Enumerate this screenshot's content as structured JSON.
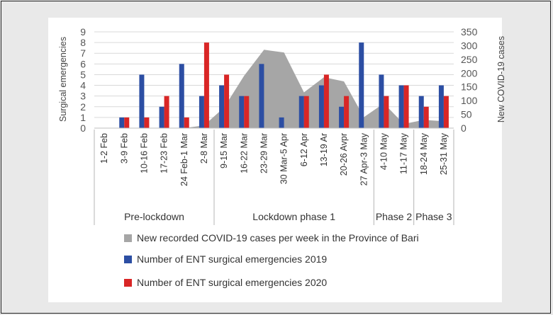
{
  "chart_data": {
    "type": "bar",
    "categories": [
      "1-2 Feb",
      "3-9 Feb",
      "10-16 Feb",
      "17-23 Feb",
      "24 Feb-1 Mar",
      "2-8 Mar",
      "9-15 Mar",
      "16-22 Mar",
      "23-29 Mar",
      "30 Mar-5 Apr",
      "6-12 Apr",
      "13-19 Ar",
      "20-26 Avpr",
      "27 Apr-3 May",
      "4-10 May",
      "11-17 May",
      "18-24 May",
      "25-31 May"
    ],
    "ylabel": "Surgical emergencies",
    "ylabel_right": "New COVID-19 cases",
    "ylim": [
      0,
      9
    ],
    "ylim_right": [
      0,
      350
    ],
    "yticks": [
      0,
      1,
      2,
      3,
      4,
      5,
      6,
      7,
      8,
      9
    ],
    "yticks_right": [
      0,
      50,
      100,
      150,
      200,
      250,
      300,
      350
    ],
    "groups": [
      {
        "label": "Pre-lockdown",
        "start": 0,
        "end": 5
      },
      {
        "label": "Lockdown phase 1",
        "start": 6,
        "end": 13
      },
      {
        "label": "Phase 2",
        "start": 14,
        "end": 15
      },
      {
        "label": "Phase 3",
        "start": 16,
        "end": 17
      }
    ],
    "series": [
      {
        "name": "New recorded COVID-19 cases per week in the Province of Bari",
        "kind": "area",
        "axis": "right",
        "color": "#a6a6a6",
        "values": [
          0,
          0,
          0,
          0,
          0,
          10,
          75,
          190,
          285,
          275,
          130,
          185,
          170,
          40,
          90,
          15,
          30,
          25
        ]
      },
      {
        "name": "Number of ENT surgical emergencies 2019",
        "kind": "bar",
        "axis": "left",
        "color": "#2c4ea3",
        "values": [
          0,
          1,
          5,
          2,
          6,
          3,
          4,
          3,
          6,
          1,
          3,
          4,
          2,
          8,
          5,
          4,
          3,
          4
        ]
      },
      {
        "name": "Number of ENT surgical emergencies 2020",
        "kind": "bar",
        "axis": "left",
        "color": "#d92626",
        "values": [
          0,
          1,
          1,
          3,
          1,
          8,
          5,
          3,
          0,
          0,
          3,
          5,
          3,
          0,
          3,
          4,
          2,
          3
        ]
      }
    ],
    "grid": true,
    "legend": "bottom"
  }
}
